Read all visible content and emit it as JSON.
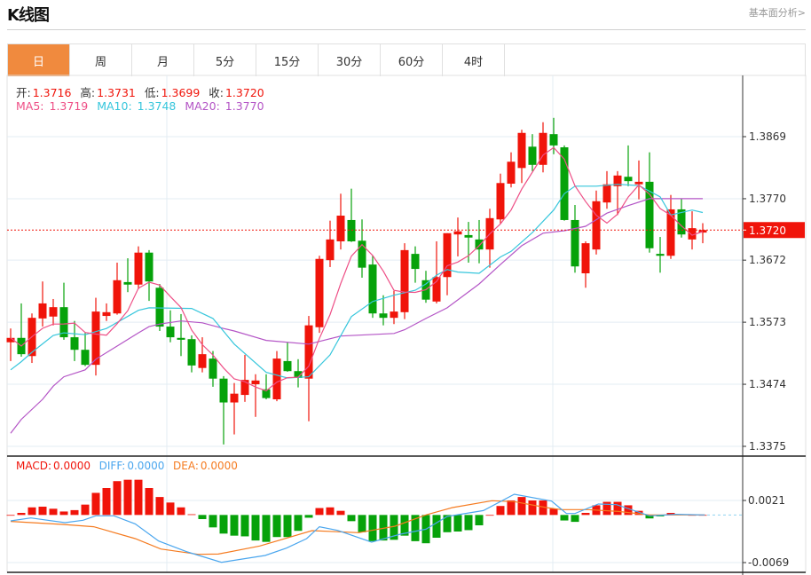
{
  "header": {
    "title": "K线图",
    "fundamental_link": "基本面分析>"
  },
  "tabs": [
    {
      "label": "日",
      "active": true
    },
    {
      "label": "周"
    },
    {
      "label": "月"
    },
    {
      "label": "5分"
    },
    {
      "label": "15分"
    },
    {
      "label": "30分"
    },
    {
      "label": "60分"
    },
    {
      "label": "4时"
    }
  ],
  "ohlc_info": {
    "open_label": "开:",
    "open": "1.3716",
    "high_label": "高:",
    "high": "1.3731",
    "low_label": "低:",
    "low": "1.3699",
    "close_label": "收:",
    "close": "1.3720"
  },
  "ma_info": {
    "ma5_label": "MA5:",
    "ma5": "1.3719",
    "ma10_label": "MA10:",
    "ma10": "1.3748",
    "ma20_label": "MA20:",
    "ma20": "1.3770"
  },
  "macd_info": {
    "macd_label": "MACD:",
    "macd": "0.0000",
    "diff_label": "DIFF:",
    "diff": "0.0000",
    "dea_label": "DEA:",
    "dea": "0.0000"
  },
  "colors": {
    "up": "#f0140a",
    "down": "#06a20a",
    "ma5": "#ee4f86",
    "ma10": "#36c6dc",
    "ma20": "#b455c6",
    "diff": "#4aa6ee",
    "dea": "#f57b20",
    "accent": "#f08a3e"
  },
  "chart_data": {
    "type": "candlestick",
    "price_axis": {
      "ticks": [
        "1.3869",
        "1.3770",
        "1.3672",
        "1.3573",
        "1.3474",
        "1.3375"
      ],
      "range": [
        1.3375,
        1.3869
      ]
    },
    "current_price": "1.3720",
    "candles": [
      [
        1.3541,
        1.3563,
        1.3511,
        1.3548
      ],
      [
        1.3548,
        1.3603,
        1.3518,
        1.3522
      ],
      [
        1.3519,
        1.3587,
        1.3508,
        1.358
      ],
      [
        1.3579,
        1.3638,
        1.3566,
        1.3603
      ],
      [
        1.3582,
        1.361,
        1.3568,
        1.3597
      ],
      [
        1.3597,
        1.3636,
        1.3545,
        1.3549
      ],
      [
        1.3549,
        1.3575,
        1.3511,
        1.3529
      ],
      [
        1.3529,
        1.3556,
        1.3503,
        1.3505
      ],
      [
        1.3505,
        1.3612,
        1.3488,
        1.359
      ],
      [
        1.3583,
        1.3603,
        1.3575,
        1.3589
      ],
      [
        1.3587,
        1.3668,
        1.3585,
        1.364
      ],
      [
        1.3637,
        1.3675,
        1.3621,
        1.3633
      ],
      [
        1.3633,
        1.3694,
        1.3626,
        1.3684
      ],
      [
        1.3684,
        1.3688,
        1.3607,
        1.3638
      ],
      [
        1.3628,
        1.3634,
        1.3559,
        1.3566
      ],
      [
        1.3566,
        1.3592,
        1.3541,
        1.3549
      ],
      [
        1.3548,
        1.3586,
        1.3519,
        1.3545
      ],
      [
        1.3546,
        1.3552,
        1.3493,
        1.3504
      ],
      [
        1.35,
        1.3549,
        1.3493,
        1.3522
      ],
      [
        1.3515,
        1.3527,
        1.347,
        1.3483
      ],
      [
        1.3483,
        1.3487,
        1.3378,
        1.3445
      ],
      [
        1.3445,
        1.3476,
        1.3394,
        1.3459
      ],
      [
        1.3457,
        1.3521,
        1.3446,
        1.3481
      ],
      [
        1.3474,
        1.349,
        1.3422,
        1.348
      ],
      [
        1.3466,
        1.349,
        1.345,
        1.3452
      ],
      [
        1.345,
        1.3527,
        1.3447,
        1.3515
      ],
      [
        1.3511,
        1.3541,
        1.3494,
        1.3495
      ],
      [
        1.3495,
        1.3514,
        1.3469,
        1.3484
      ],
      [
        1.3483,
        1.3583,
        1.3415,
        1.3568
      ],
      [
        1.3565,
        1.3679,
        1.3556,
        1.3674
      ],
      [
        1.3672,
        1.3735,
        1.3661,
        1.3705
      ],
      [
        1.3702,
        1.3778,
        1.3689,
        1.3743
      ],
      [
        1.3736,
        1.3786,
        1.3701,
        1.3702
      ],
      [
        1.3703,
        1.3737,
        1.3644,
        1.366
      ],
      [
        1.3665,
        1.3679,
        1.358,
        1.3587
      ],
      [
        1.3587,
        1.3616,
        1.3568,
        1.358
      ],
      [
        1.358,
        1.3623,
        1.357,
        1.359
      ],
      [
        1.3589,
        1.3699,
        1.3578,
        1.3688
      ],
      [
        1.3682,
        1.3694,
        1.3636,
        1.3658
      ],
      [
        1.364,
        1.3655,
        1.3604,
        1.3609
      ],
      [
        1.3606,
        1.3702,
        1.3603,
        1.3645
      ],
      [
        1.3645,
        1.3715,
        1.3616,
        1.3715
      ],
      [
        1.3713,
        1.374,
        1.3678,
        1.3718
      ],
      [
        1.3712,
        1.3733,
        1.3668,
        1.3708
      ],
      [
        1.3705,
        1.3736,
        1.3667,
        1.3689
      ],
      [
        1.3689,
        1.3754,
        1.366,
        1.3739
      ],
      [
        1.3737,
        1.381,
        1.373,
        1.3795
      ],
      [
        1.3794,
        1.3844,
        1.3788,
        1.3829
      ],
      [
        1.3819,
        1.388,
        1.3795,
        1.3875
      ],
      [
        1.3853,
        1.3873,
        1.3814,
        1.3824
      ],
      [
        1.3824,
        1.3892,
        1.3812,
        1.3875
      ],
      [
        1.3873,
        1.3899,
        1.3841,
        1.3855
      ],
      [
        1.3852,
        1.3855,
        1.3735,
        1.3736
      ],
      [
        1.3736,
        1.376,
        1.3652,
        1.3662
      ],
      [
        1.3651,
        1.3702,
        1.3628,
        1.3699
      ],
      [
        1.3689,
        1.3783,
        1.3681,
        1.3766
      ],
      [
        1.3764,
        1.3814,
        1.3754,
        1.3793
      ],
      [
        1.379,
        1.3814,
        1.3744,
        1.3807
      ],
      [
        1.3805,
        1.3855,
        1.379,
        1.3798
      ],
      [
        1.3793,
        1.3831,
        1.3769,
        1.3797
      ],
      [
        1.3797,
        1.3844,
        1.3684,
        1.3691
      ],
      [
        1.3682,
        1.3709,
        1.3652,
        1.3679
      ],
      [
        1.3679,
        1.3776,
        1.3674,
        1.3753
      ],
      [
        1.3753,
        1.377,
        1.3708,
        1.3713
      ],
      [
        1.3705,
        1.375,
        1.3689,
        1.3723
      ],
      [
        1.3716,
        1.3731,
        1.3699,
        1.372
      ]
    ],
    "ma10_points": [
      [
        0,
        1.3497
      ],
      [
        1,
        1.351
      ],
      [
        2,
        1.3525
      ],
      [
        4,
        1.3552
      ],
      [
        5,
        1.3556
      ],
      [
        7,
        1.3553
      ],
      [
        9,
        1.3563
      ],
      [
        12,
        1.3592
      ],
      [
        13,
        1.3596
      ],
      [
        17,
        1.3595
      ],
      [
        19,
        1.3579
      ],
      [
        21,
        1.3538
      ],
      [
        24,
        1.3493
      ],
      [
        26,
        1.3484
      ],
      [
        28,
        1.3486
      ],
      [
        30,
        1.3521
      ],
      [
        32,
        1.3582
      ],
      [
        34,
        1.3606
      ],
      [
        36,
        1.3616
      ],
      [
        38,
        1.3624
      ],
      [
        39,
        1.3634
      ],
      [
        40,
        1.3648
      ],
      [
        41,
        1.3657
      ],
      [
        42,
        1.3653
      ],
      [
        44,
        1.3651
      ],
      [
        46,
        1.3677
      ],
      [
        47,
        1.3686
      ],
      [
        49,
        1.3716
      ],
      [
        51,
        1.3752
      ],
      [
        52,
        1.3778
      ],
      [
        53,
        1.379
      ],
      [
        55,
        1.379
      ],
      [
        57,
        1.3793
      ],
      [
        59,
        1.3791
      ],
      [
        61,
        1.3773
      ],
      [
        62,
        1.3744
      ],
      [
        64,
        1.3752
      ],
      [
        65,
        1.3748
      ]
    ],
    "ma20_points": [
      [
        0,
        1.3396
      ],
      [
        1,
        1.3418
      ],
      [
        3,
        1.345
      ],
      [
        4,
        1.3471
      ],
      [
        5,
        1.3486
      ],
      [
        7,
        1.3497
      ],
      [
        8,
        1.3514
      ],
      [
        10,
        1.3535
      ],
      [
        12,
        1.3556
      ],
      [
        13,
        1.3566
      ],
      [
        14,
        1.357
      ],
      [
        16,
        1.3575
      ],
      [
        18,
        1.3572
      ],
      [
        20,
        1.3563
      ],
      [
        21,
        1.3559
      ],
      [
        24,
        1.3544
      ],
      [
        28,
        1.3538
      ],
      [
        31,
        1.3551
      ],
      [
        36,
        1.3555
      ],
      [
        37,
        1.3561
      ],
      [
        39,
        1.3579
      ],
      [
        41,
        1.3596
      ],
      [
        44,
        1.3634
      ],
      [
        46,
        1.3665
      ],
      [
        48,
        1.3695
      ],
      [
        50,
        1.3715
      ],
      [
        52,
        1.3719
      ],
      [
        54,
        1.3726
      ],
      [
        56,
        1.3747
      ],
      [
        58,
        1.3759
      ],
      [
        60,
        1.377
      ],
      [
        62,
        1.377
      ],
      [
        65,
        1.377
      ]
    ],
    "macd_axis": {
      "ticks": [
        "0.0021",
        "-0.0069"
      ],
      "range": [
        -0.0069,
        0.0021
      ]
    },
    "macd_hist": [
      0,
      0.0003,
      0.0011,
      0.0012,
      0.0009,
      0.0005,
      0.0007,
      0.0015,
      0.0032,
      0.0039,
      0.0049,
      0.0051,
      0.0051,
      0.0039,
      0.0026,
      0.0018,
      0.0011,
      0.0001,
      -0.0006,
      -0.0018,
      -0.0027,
      -0.003,
      -0.0031,
      -0.0037,
      -0.0039,
      -0.0032,
      -0.0032,
      -0.0023,
      -0.0004,
      0.001,
      0.0011,
      0.0006,
      -0.0009,
      -0.0025,
      -0.0038,
      -0.0037,
      -0.0036,
      -0.003,
      -0.0038,
      -0.0041,
      -0.0033,
      -0.0025,
      -0.0024,
      -0.0022,
      -0.0015,
      0,
      0.0013,
      0.0021,
      0.0026,
      0.0021,
      0.0021,
      0.0009,
      -0.0008,
      -0.001,
      0.0003,
      0.0014,
      0.0019,
      0.0019,
      0.0014,
      0.0006,
      -0.0005,
      -0.0002,
      0.0003,
      0.0001,
      0,
      0
    ],
    "diff_points": [
      [
        0,
        -0.00086
      ],
      [
        1.9,
        -0.00043
      ],
      [
        5.1,
        -0.00111
      ],
      [
        6.8,
        -0.00077
      ],
      [
        8,
        -0.00013
      ],
      [
        9.7,
        -0.00013
      ],
      [
        11.7,
        -0.00129
      ],
      [
        13.9,
        -0.00377
      ],
      [
        16.6,
        -0.00536
      ],
      [
        19.8,
        -0.00686
      ],
      [
        23.9,
        -0.00587
      ],
      [
        25.9,
        -0.0048
      ],
      [
        27.8,
        -0.00343
      ],
      [
        29,
        -0.00171
      ],
      [
        30.7,
        -0.00223
      ],
      [
        33.9,
        -0.00394
      ],
      [
        36.6,
        -0.00279
      ],
      [
        39,
        -0.00206
      ],
      [
        41,
        -0.00021
      ],
      [
        44.4,
        0.00064
      ],
      [
        47.3,
        0.003
      ],
      [
        50.8,
        0.00201
      ],
      [
        52.2,
        0.00021
      ],
      [
        53,
        0.00021
      ],
      [
        55.2,
        0.00159
      ],
      [
        56.9,
        0.0015
      ],
      [
        60,
        -0.00013
      ],
      [
        62.5,
        9e-05
      ],
      [
        65.2,
        0
      ]
    ],
    "dea_points": [
      [
        0,
        -0.00094
      ],
      [
        4.9,
        -0.00137
      ],
      [
        7.8,
        -0.00171
      ],
      [
        11.7,
        -0.00343
      ],
      [
        14.1,
        -0.00493
      ],
      [
        17.6,
        -0.0057
      ],
      [
        19.5,
        -0.00566
      ],
      [
        23.4,
        -0.0045
      ],
      [
        28.3,
        -0.00227
      ],
      [
        32.7,
        -0.00257
      ],
      [
        36.1,
        -0.00163
      ],
      [
        39,
        0
      ],
      [
        41.5,
        0.00107
      ],
      [
        45.2,
        0.00206
      ],
      [
        47.3,
        0.00193
      ],
      [
        50.3,
        0.00107
      ],
      [
        51.7,
        0.00077
      ],
      [
        54.2,
        0.00077
      ],
      [
        57.1,
        0.00051
      ],
      [
        60,
        0
      ],
      [
        65.2,
        0
      ]
    ]
  }
}
